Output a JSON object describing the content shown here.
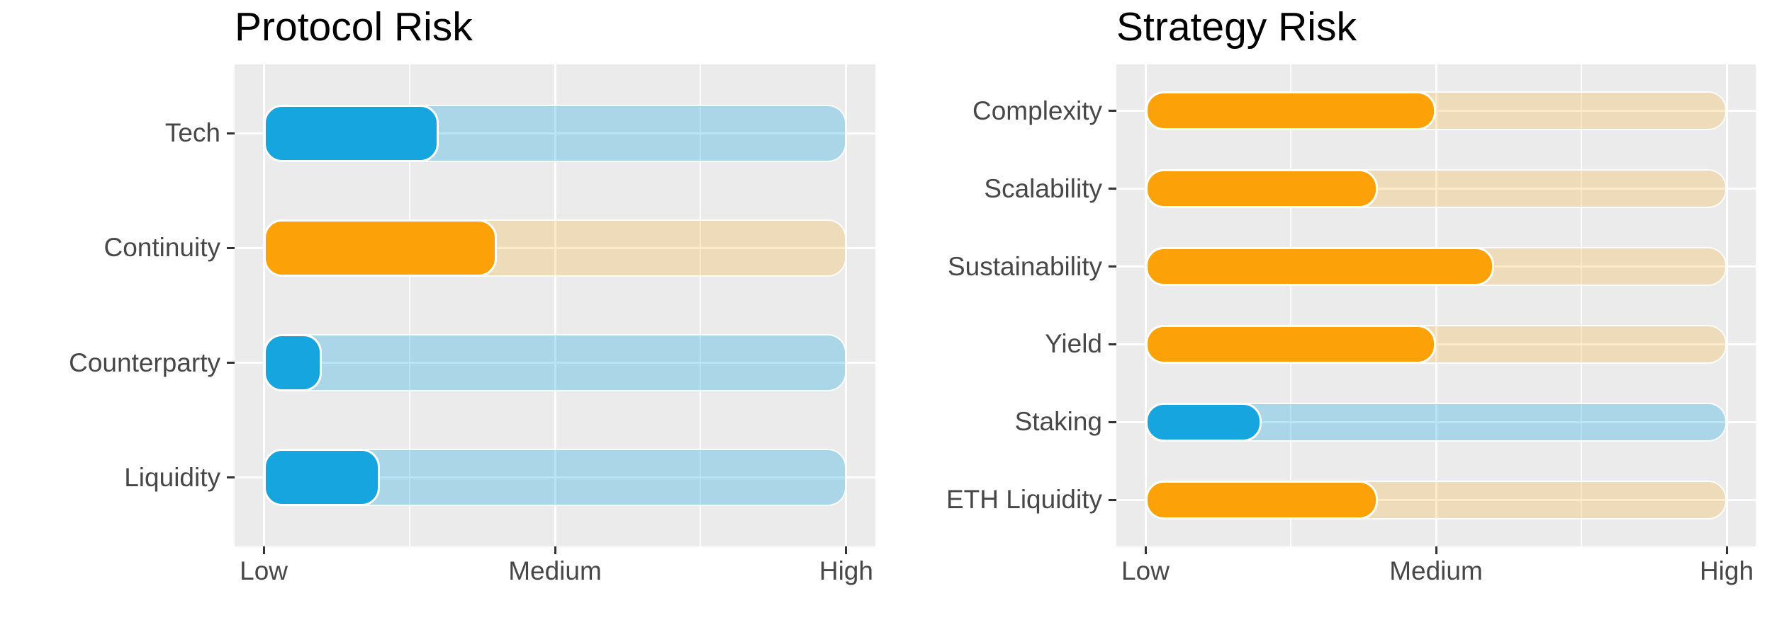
{
  "figure": {
    "background": "#FFFFFF",
    "panel_background": "#EBEBEB",
    "gridline_color": "#FFFFFF",
    "axis_text_color": "#474747",
    "tick_mark_color": "#333333",
    "title_color": "#000000"
  },
  "colors": {
    "blue_fill": "#17A5DF",
    "orange_fill": "#FCA208",
    "blue_track": "rgba(23,165,223,0.30)",
    "orange_track": "rgba(252,166,10,0.22)"
  },
  "x_axis": {
    "min": 0,
    "max": 10,
    "ticks": [
      {
        "label": "Low",
        "value": 0
      },
      {
        "label": "Medium",
        "value": 5
      },
      {
        "label": "High",
        "value": 10
      }
    ],
    "minor_gridlines": [
      2.5,
      7.5
    ]
  },
  "chart_data": [
    {
      "type": "bar",
      "orientation": "horizontal",
      "title": "Protocol Risk",
      "categories": [
        "Tech",
        "Continuity",
        "Counterparty",
        "Liquidity"
      ],
      "values": [
        3,
        4,
        1,
        2
      ],
      "bar_colors": [
        "blue",
        "orange",
        "blue",
        "blue"
      ],
      "track_value": 10,
      "xlabel": "",
      "ylabel": "",
      "x_tick_labels": [
        "Low",
        "Medium",
        "High"
      ],
      "grid": "on",
      "legend": "none"
    },
    {
      "type": "bar",
      "orientation": "horizontal",
      "title": "Strategy Risk",
      "categories": [
        "Complexity",
        "Scalability",
        "Sustainability",
        "Yield",
        "Staking",
        "ETH Liquidity"
      ],
      "values": [
        5,
        4,
        6,
        5,
        2,
        4
      ],
      "bar_colors": [
        "orange",
        "orange",
        "orange",
        "orange",
        "blue",
        "orange"
      ],
      "track_value": 10,
      "xlabel": "",
      "ylabel": "",
      "x_tick_labels": [
        "Low",
        "Medium",
        "High"
      ],
      "grid": "on",
      "legend": "none"
    }
  ]
}
